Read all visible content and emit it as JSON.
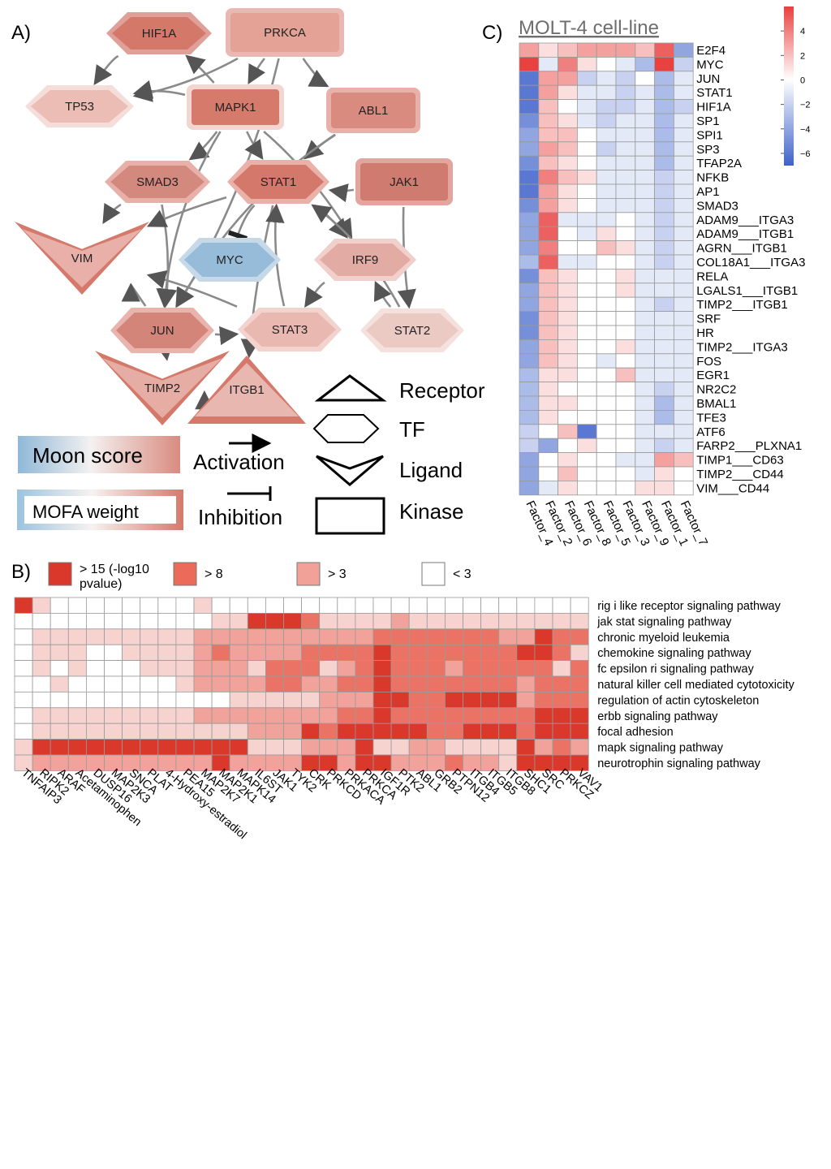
{
  "panel_labels": {
    "a": "A)",
    "b": "B)",
    "c": "C)"
  },
  "network": {
    "nodes": {
      "HIF1A": {
        "label": "HIF1A",
        "shape": "tf",
        "moon": "#d4786a",
        "mofa": "#e0a09a"
      },
      "PRKCA": {
        "label": "PRKCA",
        "shape": "kinase",
        "moon": "#e3a295",
        "mofa": "#eab8b3"
      },
      "TP53": {
        "label": "TP53",
        "shape": "tf",
        "moon": "#ebbdb4",
        "mofa": "#f5ddd9"
      },
      "MAPK1": {
        "label": "MAPK1",
        "shape": "kinase",
        "moon": "#d67b6c",
        "mofa": "#f2d6d2"
      },
      "ABL1": {
        "label": "ABL1",
        "shape": "kinase",
        "moon": "#d98b80",
        "mofa": "#e8b2ab"
      },
      "SMAD3": {
        "label": "SMAD3",
        "shape": "tf",
        "moon": "#d4897e",
        "mofa": "#e7b1aa"
      },
      "STAT1": {
        "label": "STAT1",
        "shape": "tf",
        "moon": "#d3786b",
        "mofa": "#e9b1aa"
      },
      "JAK1": {
        "label": "JAK1",
        "shape": "kinase",
        "moon": "#d07b6f",
        "mofa": "#e4a59e"
      },
      "VIM": {
        "label": "VIM",
        "shape": "ligand",
        "moon": "#e8b0a8",
        "mofa": "#d5796c"
      },
      "MYC": {
        "label": "MYC",
        "shape": "tf",
        "moon": "#97bcd9",
        "mofa": "#c5d9e9"
      },
      "IRF9": {
        "label": "IRF9",
        "shape": "tf",
        "moon": "#e2aba3",
        "mofa": "#f1d0cb"
      },
      "JUN": {
        "label": "JUN",
        "shape": "tf",
        "moon": "#d4857a",
        "mofa": "#e8b4ad"
      },
      "STAT3": {
        "label": "STAT3",
        "shape": "tf",
        "moon": "#e9b8b0",
        "mofa": "#f2d3ce"
      },
      "STAT2": {
        "label": "STAT2",
        "shape": "tf",
        "moon": "#eccac4",
        "mofa": "#f4e0dc"
      },
      "TIMP2": {
        "label": "TIMP2",
        "shape": "ligand",
        "moon": "#e6ada4",
        "mofa": "#d4786a"
      },
      "ITGB1": {
        "label": "ITGB1",
        "shape": "receptor",
        "moon": "#e8b7b0",
        "mofa": "#d5796c"
      }
    },
    "edges": [
      {
        "from": "HIF1A",
        "to": "TP53",
        "type": "activation"
      },
      {
        "from": "PRKCA",
        "to": "TP53",
        "type": "activation"
      },
      {
        "from": "PRKCA",
        "to": "MAPK1",
        "type": "activation"
      },
      {
        "from": "PRKCA",
        "to": "ABL1",
        "type": "activation"
      },
      {
        "from": "PRKCA",
        "to": "JUN",
        "type": "activation"
      },
      {
        "from": "MAPK1",
        "to": "HIF1A",
        "type": "activation"
      },
      {
        "from": "MAPK1",
        "to": "TP53",
        "type": "activation"
      },
      {
        "from": "MAPK1",
        "to": "SMAD3",
        "type": "activation"
      },
      {
        "from": "MAPK1",
        "to": "STAT1",
        "type": "activation"
      },
      {
        "from": "MAPK1",
        "to": "JUN",
        "type": "activation"
      },
      {
        "from": "MAPK1",
        "to": "IRF9",
        "type": "activation"
      },
      {
        "from": "ABL1",
        "to": "STAT1",
        "type": "activation"
      },
      {
        "from": "ABL1",
        "to": "JUN",
        "type": "activation"
      },
      {
        "from": "JAK1",
        "to": "STAT1",
        "type": "activation"
      },
      {
        "from": "JAK1",
        "to": "STAT2",
        "type": "activation"
      },
      {
        "from": "SMAD3",
        "to": "VIM",
        "type": "activation"
      },
      {
        "from": "SMAD3",
        "to": "JUN",
        "type": "activation"
      },
      {
        "from": "STAT1",
        "to": "VIM",
        "type": "activation"
      },
      {
        "from": "STAT1",
        "to": "MYC",
        "type": "inhibition"
      },
      {
        "from": "STAT1",
        "to": "IRF9",
        "type": "activation"
      },
      {
        "from": "STAT1",
        "to": "ITGB1",
        "type": "activation"
      },
      {
        "from": "IRF9",
        "to": "STAT3",
        "type": "activation"
      },
      {
        "from": "STAT3",
        "to": "STAT1",
        "type": "activation"
      },
      {
        "from": "STAT3",
        "to": "VIM",
        "type": "activation"
      },
      {
        "from": "STAT2",
        "to": "STAT1",
        "type": "activation"
      },
      {
        "from": "STAT2",
        "to": "IRF9",
        "type": "activation"
      },
      {
        "from": "JUN",
        "to": "STAT3",
        "type": "activation"
      },
      {
        "from": "JUN",
        "to": "VIM",
        "type": "activation"
      },
      {
        "from": "JUN",
        "to": "TIMP2",
        "type": "activation"
      },
      {
        "from": "TIMP2",
        "to": "ITGB1",
        "type": "activation"
      }
    ]
  },
  "legend_a": {
    "moon_score": "Moon score",
    "mofa_weight": "MOFA weight",
    "activation": "Activation",
    "inhibition": "Inhibition",
    "receptor": "Receptor",
    "tf": "TF",
    "ligand": "Ligand",
    "kinase": "Kinase"
  },
  "panel_b": {
    "legend": [
      {
        "label": "> 15 (-log10 pvalue)",
        "color": "#d9382b"
      },
      {
        "label": "> 8",
        "color": "#ec6a5a"
      },
      {
        "label": "> 3",
        "color": "#f2a199"
      },
      {
        "label": "< 3",
        "color": "#ffffff"
      }
    ],
    "colors": [
      "#ffffff",
      "#f7d3d0",
      "#f0a29b",
      "#ea7366",
      "#d9382b"
    ]
  },
  "panel_c": {
    "title": "MOLT-4 cell-line",
    "colorbar": {
      "ticks": [
        4,
        2,
        0,
        -2,
        -4,
        -6
      ],
      "min": -7,
      "max": 6
    }
  },
  "chart_data": [
    {
      "type": "heatmap",
      "title": "MOLT-4 cell-line",
      "columns": [
        "Factor_4",
        "Factor_2",
        "Factor_6",
        "Factor_8",
        "Factor_5",
        "Factor_3",
        "Factor_9",
        "Factor_1",
        "Factor_7"
      ],
      "rows": [
        "E2F4",
        "MYC",
        "JUN",
        "STAT1",
        "HIF1A",
        "SP1",
        "SPI1",
        "SP3",
        "TFAP2A",
        "NFKB",
        "AP1",
        "SMAD3",
        "ADAM9___ITGA3",
        "ADAM9___ITGB1",
        "AGRN___ITGB1",
        "COL18A1___ITGA3",
        "RELA",
        "LGALS1___ITGB1",
        "TIMP2___ITGB1",
        "SRF",
        "HR",
        "TIMP2___ITGA3",
        "FOS",
        "EGR1",
        "NR2C2",
        "BMAL1",
        "TFE3",
        "ATF6",
        "FARP2___PLXNA1",
        "TIMP1___CD63",
        "TIMP2___CD44",
        "VIM___CD44"
      ],
      "values": [
        [
          3,
          1,
          2,
          3,
          3,
          3,
          2,
          5,
          -4
        ],
        [
          6,
          -1,
          4,
          1,
          0,
          -1,
          -3,
          6,
          -2
        ],
        [
          -6,
          3,
          3,
          -2,
          -1,
          -2,
          0,
          -3,
          -1
        ],
        [
          -6,
          3,
          1,
          -1,
          -1,
          -2,
          -1,
          -3,
          -1
        ],
        [
          -6,
          2,
          0,
          -1,
          -2,
          -2,
          -1,
          -3,
          -2
        ],
        [
          -5,
          2,
          1,
          -1,
          -2,
          -1,
          -1,
          -3,
          -1
        ],
        [
          -4,
          2,
          2,
          0,
          -1,
          -1,
          -1,
          -3,
          -1
        ],
        [
          -4,
          3,
          2,
          0,
          -2,
          -1,
          -1,
          -3,
          -1
        ],
        [
          -5,
          2,
          1,
          0,
          -1,
          -1,
          -1,
          -3,
          -1
        ],
        [
          -6,
          4,
          2,
          1,
          -1,
          -1,
          -1,
          -2,
          -1
        ],
        [
          -6,
          3,
          1,
          0,
          -1,
          -1,
          -1,
          -2,
          -1
        ],
        [
          -5,
          3,
          1,
          0,
          -1,
          -1,
          -1,
          -2,
          -1
        ],
        [
          -4,
          5,
          -1,
          -1,
          -1,
          0,
          -1,
          -2,
          -1
        ],
        [
          -4,
          5,
          0,
          -1,
          1,
          0,
          -1,
          -2,
          -1
        ],
        [
          -4,
          4,
          0,
          0,
          2,
          1,
          -1,
          -2,
          -1
        ],
        [
          -3,
          5,
          -1,
          -1,
          0,
          0,
          -1,
          -2,
          -1
        ],
        [
          -5,
          2,
          1,
          0,
          0,
          1,
          -1,
          -1,
          -1
        ],
        [
          -4,
          2,
          1,
          0,
          0,
          1,
          -1,
          -1,
          -1
        ],
        [
          -4,
          2,
          1,
          0,
          0,
          0,
          -1,
          -2,
          -1
        ],
        [
          -5,
          2,
          1,
          0,
          0,
          0,
          -1,
          -1,
          -1
        ],
        [
          -5,
          2,
          1,
          0,
          0,
          0,
          -1,
          -1,
          -1
        ],
        [
          -4,
          2,
          1,
          0,
          0,
          1,
          -1,
          -1,
          -1
        ],
        [
          -4,
          2,
          1,
          0,
          -1,
          0,
          -1,
          -1,
          -1
        ],
        [
          -3,
          1,
          1,
          0,
          0,
          2,
          -1,
          -1,
          -1
        ],
        [
          -3,
          1,
          0,
          0,
          0,
          0,
          -1,
          -2,
          -1
        ],
        [
          -3,
          1,
          1,
          0,
          0,
          0,
          -1,
          -3,
          -1
        ],
        [
          -3,
          1,
          0,
          0,
          0,
          0,
          -1,
          -3,
          -1
        ],
        [
          -2,
          0,
          2,
          -6,
          0,
          0,
          -1,
          -1,
          -1
        ],
        [
          -2,
          -4,
          0,
          1,
          0,
          0,
          -1,
          -2,
          -1
        ],
        [
          -4,
          0,
          1,
          0,
          0,
          -1,
          -1,
          3,
          2
        ],
        [
          -4,
          0,
          2,
          0,
          0,
          0,
          -1,
          1,
          0
        ],
        [
          -4,
          -1,
          1,
          0,
          0,
          0,
          1,
          1,
          0
        ]
      ]
    },
    {
      "type": "heatmap",
      "legend_title": "-log10 pvalue",
      "columns": [
        "TNFAIP3",
        "RIPK2",
        "ARAF",
        "Acetaminophen",
        "DUSP16",
        "MAP2K3",
        "SNCA",
        "PLAT",
        "4-Hydroxy-estradiol",
        "PEA15",
        "MAP2K7",
        "MAP2K1",
        "MAPK14",
        "IL6ST",
        "JAK1",
        "TYK2",
        "CRK",
        "PRKCD",
        "PRKACA",
        "PRKCA",
        "IGF1R",
        "PTK2",
        "ABL1",
        "GRB2",
        "PTPN12",
        "ITGB4",
        "ITGB5",
        "ITGB8",
        "SHC1",
        "SRC",
        "PRKCZ",
        "VAV1"
      ],
      "rows": [
        "rig i like receptor signaling pathway",
        "jak stat signaling pathway",
        "chronic myeloid leukemia",
        "chemokine signaling pathway",
        "fc epsilon ri signaling pathway",
        "natural killer cell mediated cytotoxicity",
        "regulation of actin cytoskeleton",
        "erbb signaling pathway",
        "focal adhesion",
        "mapk signaling pathway",
        "neurotrophin signaling pathway"
      ],
      "levels": [
        [
          4,
          1,
          0,
          0,
          0,
          0,
          0,
          0,
          0,
          0,
          1,
          0,
          0,
          0,
          0,
          0,
          0,
          0,
          0,
          0,
          0,
          0,
          0,
          0,
          0,
          0,
          0,
          0,
          0,
          0,
          0,
          0
        ],
        [
          0,
          0,
          0,
          0,
          0,
          0,
          0,
          0,
          0,
          0,
          0,
          1,
          1,
          4,
          4,
          4,
          3,
          1,
          1,
          1,
          1,
          2,
          1,
          1,
          1,
          1,
          1,
          1,
          1,
          1,
          1,
          1
        ],
        [
          0,
          1,
          1,
          1,
          1,
          1,
          1,
          1,
          1,
          1,
          2,
          2,
          2,
          2,
          2,
          2,
          2,
          2,
          2,
          2,
          3,
          3,
          3,
          3,
          3,
          3,
          3,
          2,
          2,
          4,
          3,
          3
        ],
        [
          0,
          1,
          1,
          1,
          0,
          0,
          1,
          1,
          1,
          1,
          2,
          3,
          2,
          2,
          2,
          2,
          3,
          3,
          3,
          3,
          4,
          3,
          3,
          3,
          3,
          3,
          3,
          3,
          4,
          4,
          3,
          1
        ],
        [
          0,
          1,
          0,
          1,
          0,
          0,
          0,
          1,
          1,
          1,
          2,
          2,
          2,
          1,
          3,
          3,
          3,
          1,
          2,
          3,
          4,
          3,
          3,
          3,
          2,
          3,
          3,
          3,
          3,
          3,
          1,
          3
        ],
        [
          0,
          0,
          1,
          0,
          0,
          0,
          0,
          0,
          0,
          1,
          2,
          2,
          2,
          2,
          3,
          3,
          2,
          2,
          3,
          3,
          4,
          3,
          3,
          3,
          3,
          3,
          3,
          3,
          2,
          3,
          3,
          3
        ],
        [
          0,
          0,
          0,
          0,
          0,
          0,
          0,
          0,
          0,
          0,
          0,
          0,
          1,
          1,
          1,
          1,
          1,
          2,
          2,
          2,
          4,
          4,
          3,
          3,
          4,
          4,
          4,
          4,
          2,
          3,
          3,
          3
        ],
        [
          0,
          1,
          1,
          1,
          1,
          1,
          1,
          1,
          1,
          1,
          2,
          2,
          2,
          2,
          2,
          2,
          2,
          2,
          3,
          3,
          4,
          3,
          3,
          3,
          3,
          3,
          3,
          3,
          3,
          4,
          4,
          4
        ],
        [
          0,
          1,
          1,
          1,
          1,
          1,
          1,
          1,
          1,
          1,
          1,
          1,
          1,
          2,
          2,
          2,
          4,
          3,
          4,
          4,
          4,
          4,
          4,
          3,
          3,
          4,
          4,
          4,
          3,
          4,
          4,
          4
        ],
        [
          1,
          4,
          4,
          4,
          4,
          4,
          4,
          4,
          4,
          4,
          4,
          4,
          4,
          1,
          1,
          1,
          2,
          2,
          2,
          4,
          1,
          1,
          2,
          2,
          1,
          1,
          1,
          1,
          4,
          2,
          3,
          2
        ],
        [
          1,
          2,
          2,
          2,
          2,
          2,
          2,
          2,
          2,
          2,
          2,
          4,
          2,
          2,
          2,
          2,
          4,
          4,
          2,
          4,
          4,
          2,
          2,
          2,
          3,
          2,
          2,
          1,
          4,
          4,
          4,
          4
        ]
      ]
    }
  ]
}
